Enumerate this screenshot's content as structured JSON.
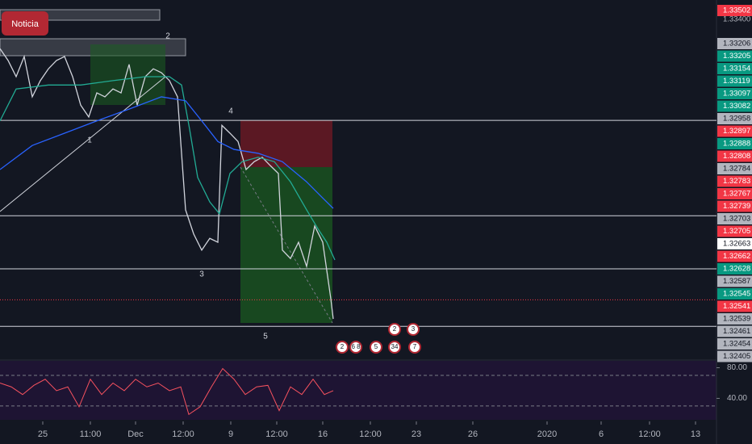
{
  "chart_data": {
    "type": "line",
    "xlim": [
      0,
      888
    ],
    "ylim": [
      1.32472,
      1.33203
    ],
    "xticks": [
      {
        "value": 53,
        "label": "25"
      },
      {
        "value": 112,
        "label": "11:00"
      },
      {
        "value": 168,
        "label": "Dec"
      },
      {
        "value": 227,
        "label": "12:00"
      },
      {
        "value": 286,
        "label": "9"
      },
      {
        "value": 343,
        "label": "12:00"
      },
      {
        "value": 400,
        "label": "16"
      },
      {
        "value": 459,
        "label": "12:00"
      },
      {
        "value": 516,
        "label": "23"
      },
      {
        "value": 586,
        "label": "26"
      },
      {
        "value": 678,
        "label": "2020"
      },
      {
        "value": 745,
        "label": "6"
      },
      {
        "value": 805,
        "label": "12:00"
      },
      {
        "value": 862,
        "label": "13"
      }
    ],
    "price_tags": [
      {
        "label": "1.33502",
        "color": "#f23645"
      },
      {
        "label": "1.33400",
        "color": "#131722"
      },
      {
        "label": "1.33206",
        "color": "#b2b5be"
      },
      {
        "label": "1.33205",
        "color": "#089981"
      },
      {
        "label": "1.33154",
        "color": "#089981"
      },
      {
        "label": "1.33119",
        "color": "#089981"
      },
      {
        "label": "1.33097",
        "color": "#089981"
      },
      {
        "label": "1.33082",
        "color": "#089981"
      },
      {
        "label": "1.32958",
        "color": "#b2b5be"
      },
      {
        "label": "1.32897",
        "color": "#f23645"
      },
      {
        "label": "1.32888",
        "color": "#089981"
      },
      {
        "label": "1.32808",
        "color": "#f23645"
      },
      {
        "label": "1.32784",
        "color": "#b2b5be"
      },
      {
        "label": "1.32783",
        "color": "#f23645"
      },
      {
        "label": "1.32767",
        "color": "#f23645"
      },
      {
        "label": "1.32739",
        "color": "#f23645"
      },
      {
        "label": "1.32703",
        "color": "#b2b5be"
      },
      {
        "label": "1.32705",
        "color": "#f23645"
      },
      {
        "label": "1.32663",
        "color": "#ffffff"
      },
      {
        "label": "1.32662",
        "color": "#f23645"
      },
      {
        "label": "1.32628",
        "color": "#089981"
      },
      {
        "label": "1.32587",
        "color": "#b2b5be"
      },
      {
        "label": "1.32545",
        "color": "#089981"
      },
      {
        "label": "1.32541",
        "color": "#f23645"
      },
      {
        "label": "1.32539",
        "color": "#b2b5be"
      },
      {
        "label": "1.32461",
        "color": "#b2b5be"
      },
      {
        "label": "1.32454",
        "color": "#b2b5be"
      },
      {
        "label": "1.32405",
        "color": "#b2b5be"
      }
    ],
    "levels": [
      1.32958,
      1.32764,
      1.32656,
      1.32539
    ],
    "level_color": "#d1d4dc",
    "current_price": 1.32593,
    "series": [
      {
        "color": "#d1d4dc",
        "x": [
          0,
          10,
          20,
          30,
          40,
          50,
          60,
          70,
          80,
          90,
          100,
          110,
          120,
          130,
          140,
          150,
          160,
          170,
          180,
          190,
          200,
          210,
          220,
          230,
          240,
          250,
          260,
          270,
          275,
          285,
          295,
          305,
          315,
          325,
          335,
          345,
          350,
          360,
          370,
          380,
          390,
          400,
          410,
          413
        ],
        "values": [
          1.33104,
          1.3308,
          1.33047,
          1.33088,
          1.33006,
          1.33039,
          1.33063,
          1.3308,
          1.33088,
          1.33047,
          1.32989,
          1.32965,
          1.33014,
          1.33006,
          1.33022,
          1.33014,
          1.33072,
          1.32989,
          1.33047,
          1.33063,
          1.33055,
          1.33039,
          1.33006,
          1.32776,
          1.32727,
          1.32694,
          1.32718,
          1.3271,
          1.32948,
          1.32932,
          1.32915,
          1.32858,
          1.32874,
          1.32883,
          1.32866,
          1.3285,
          1.32694,
          1.32677,
          1.3271,
          1.32661,
          1.32743,
          1.3271,
          1.32595,
          1.32554
        ]
      },
      {
        "color": "#22ab94",
        "x": [
          0,
          20,
          60,
          100,
          140,
          180,
          210,
          225,
          235,
          245,
          260,
          272,
          285,
          300,
          320,
          340,
          360,
          380,
          395,
          405,
          415
        ],
        "values": [
          1.32957,
          1.33022,
          1.3303,
          1.3303,
          1.33039,
          1.33047,
          1.33047,
          1.3303,
          1.3294,
          1.32842,
          1.32792,
          1.32768,
          1.3285,
          1.32874,
          1.32883,
          1.32874,
          1.32833,
          1.32776,
          1.32735,
          1.3271,
          1.32674
        ]
      },
      {
        "color": "#2962ff",
        "x": [
          0,
          40,
          80,
          120,
          160,
          200,
          230,
          250,
          270,
          290,
          320,
          350,
          380,
          400,
          413
        ],
        "values": [
          1.32858,
          1.32907,
          1.32932,
          1.32957,
          1.32981,
          1.33006,
          1.32998,
          1.32957,
          1.32915,
          1.32899,
          1.32891,
          1.32874,
          1.32833,
          1.328,
          1.32779
        ]
      }
    ],
    "annotations": {
      "news": "Noticia",
      "waves": [
        "1",
        "2",
        "3",
        "4",
        "5"
      ],
      "events": [
        "2",
        "6 8",
        "5",
        "34",
        "7",
        "2",
        "3"
      ]
    },
    "rsi": {
      "color": "#f7525f",
      "ylim": [
        12,
        89
      ],
      "yticks": [
        {
          "value": 80,
          "label": "80.00"
        },
        {
          "value": 40,
          "label": "40.00"
        }
      ],
      "bands": [
        70,
        30
      ],
      "x": [
        0,
        14,
        28,
        42,
        56,
        70,
        84,
        98,
        112,
        126,
        140,
        154,
        168,
        182,
        196,
        210,
        224,
        234,
        248,
        262,
        276,
        290,
        304,
        318,
        332,
        346,
        360,
        374,
        388,
        402,
        413
      ],
      "values": [
        60,
        55,
        45,
        57,
        65,
        50,
        55,
        29,
        65,
        45,
        60,
        50,
        65,
        55,
        60,
        50,
        55,
        19,
        29,
        55,
        79,
        65,
        45,
        55,
        57,
        24,
        55,
        45,
        65,
        45,
        50
      ]
    }
  }
}
